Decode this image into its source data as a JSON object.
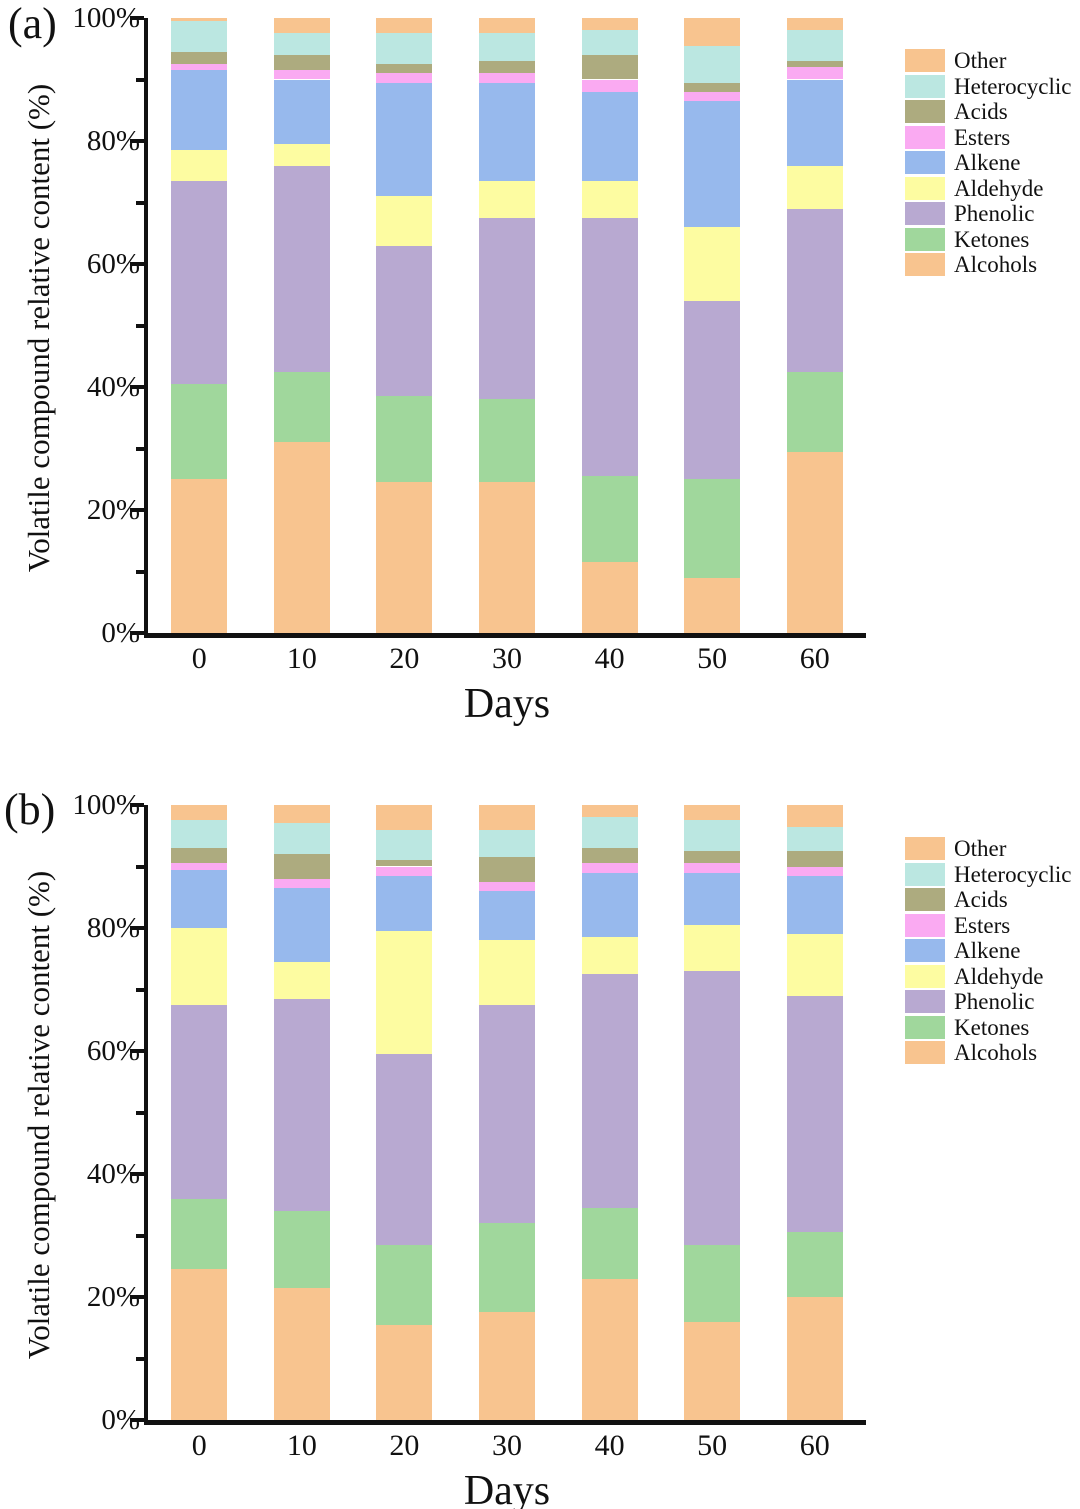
{
  "figure_title": "",
  "chart_data": [
    {
      "panel_label": "(a)",
      "type": "bar",
      "stacked": true,
      "xlabel": "Days",
      "ylabel": "Volatile compound relative content (%)",
      "categories": [
        "0",
        "10",
        "20",
        "30",
        "40",
        "50",
        "60"
      ],
      "ylim": [
        0,
        100
      ],
      "ytick_major_step": 20,
      "ytick_minor_step": 10,
      "ytick_suffix": "%",
      "grid": false,
      "legend_position": "right",
      "series_bottom_to_top": [
        {
          "name": "Alcohols",
          "color": "#F8C48F",
          "values": [
            25,
            31,
            24.5,
            24.5,
            11.5,
            9,
            29.5
          ]
        },
        {
          "name": "Ketones",
          "color": "#A0D79C",
          "values": [
            15.5,
            11.5,
            14,
            13.5,
            14,
            16,
            13
          ]
        },
        {
          "name": "Phenolic",
          "color": "#B8A9D1",
          "values": [
            33,
            33.5,
            24.5,
            29.5,
            42,
            29,
            26.5
          ]
        },
        {
          "name": "Aldehyde",
          "color": "#FDFCA1",
          "values": [
            5,
            3.5,
            8,
            6,
            6,
            12,
            7
          ]
        },
        {
          "name": "Alkene",
          "color": "#97B9ED",
          "values": [
            13,
            10.5,
            18.5,
            16,
            14.5,
            20.5,
            14
          ]
        },
        {
          "name": "Esters",
          "color": "#FAAAF2",
          "values": [
            1,
            1.5,
            1.5,
            1.5,
            2,
            1.5,
            2
          ]
        },
        {
          "name": "Acids",
          "color": "#ADAB7F",
          "values": [
            2,
            2.5,
            1.5,
            2,
            4,
            1.5,
            1
          ]
        },
        {
          "name": "Heterocyclic",
          "color": "#BBE7E1",
          "values": [
            5,
            3.5,
            5,
            4.5,
            4,
            6,
            5
          ]
        },
        {
          "name": "Other",
          "color": "#F8C48F",
          "values": [
            0.5,
            2.5,
            2.5,
            2.5,
            2,
            4.5,
            2
          ]
        }
      ],
      "legend_top_to_bottom": [
        "Other",
        "Heterocyclic",
        "Acids",
        "Esters",
        "Alkene",
        "Aldehyde",
        "Phenolic",
        "Ketones",
        "Alcohols"
      ]
    },
    {
      "panel_label": "(b)",
      "type": "bar",
      "stacked": true,
      "xlabel": "Days",
      "ylabel": "Volatile compound relative content (%)",
      "categories": [
        "0",
        "10",
        "20",
        "30",
        "40",
        "50",
        "60"
      ],
      "ylim": [
        0,
        100
      ],
      "ytick_major_step": 20,
      "ytick_minor_step": 10,
      "ytick_suffix": "%",
      "grid": false,
      "legend_position": "right",
      "series_bottom_to_top": [
        {
          "name": "Alcohols",
          "color": "#F8C48F",
          "values": [
            24.5,
            21.5,
            15.5,
            17.5,
            23,
            16,
            20
          ]
        },
        {
          "name": "Ketones",
          "color": "#A0D79C",
          "values": [
            11.5,
            12.5,
            13,
            14.5,
            11.5,
            12.5,
            10.5
          ]
        },
        {
          "name": "Phenolic",
          "color": "#B8A9D1",
          "values": [
            31.5,
            34.5,
            31,
            35.5,
            38,
            44.5,
            38.5
          ]
        },
        {
          "name": "Aldehyde",
          "color": "#FDFCA1",
          "values": [
            12.5,
            6,
            20,
            10.5,
            6,
            7.5,
            10
          ]
        },
        {
          "name": "Alkene",
          "color": "#97B9ED",
          "values": [
            9.5,
            12,
            9,
            8,
            10.5,
            8.5,
            9.5
          ]
        },
        {
          "name": "Esters",
          "color": "#FAAAF2",
          "values": [
            1,
            1.5,
            1.5,
            1.5,
            1.5,
            1.5,
            1.5
          ]
        },
        {
          "name": "Acids",
          "color": "#ADAB7F",
          "values": [
            2.5,
            4,
            1,
            4,
            2.5,
            2,
            2.5
          ]
        },
        {
          "name": "Heterocyclic",
          "color": "#BBE7E1",
          "values": [
            4.5,
            5,
            5,
            4.5,
            5,
            5,
            4
          ]
        },
        {
          "name": "Other",
          "color": "#F8C48F",
          "values": [
            2.5,
            3,
            4,
            4,
            2,
            2.5,
            3.5
          ]
        }
      ],
      "legend_top_to_bottom": [
        "Other",
        "Heterocyclic",
        "Acids",
        "Esters",
        "Alkene",
        "Aldehyde",
        "Phenolic",
        "Ketones",
        "Alcohols"
      ]
    }
  ],
  "axis_color": "#111111",
  "background_color": "#ffffff"
}
